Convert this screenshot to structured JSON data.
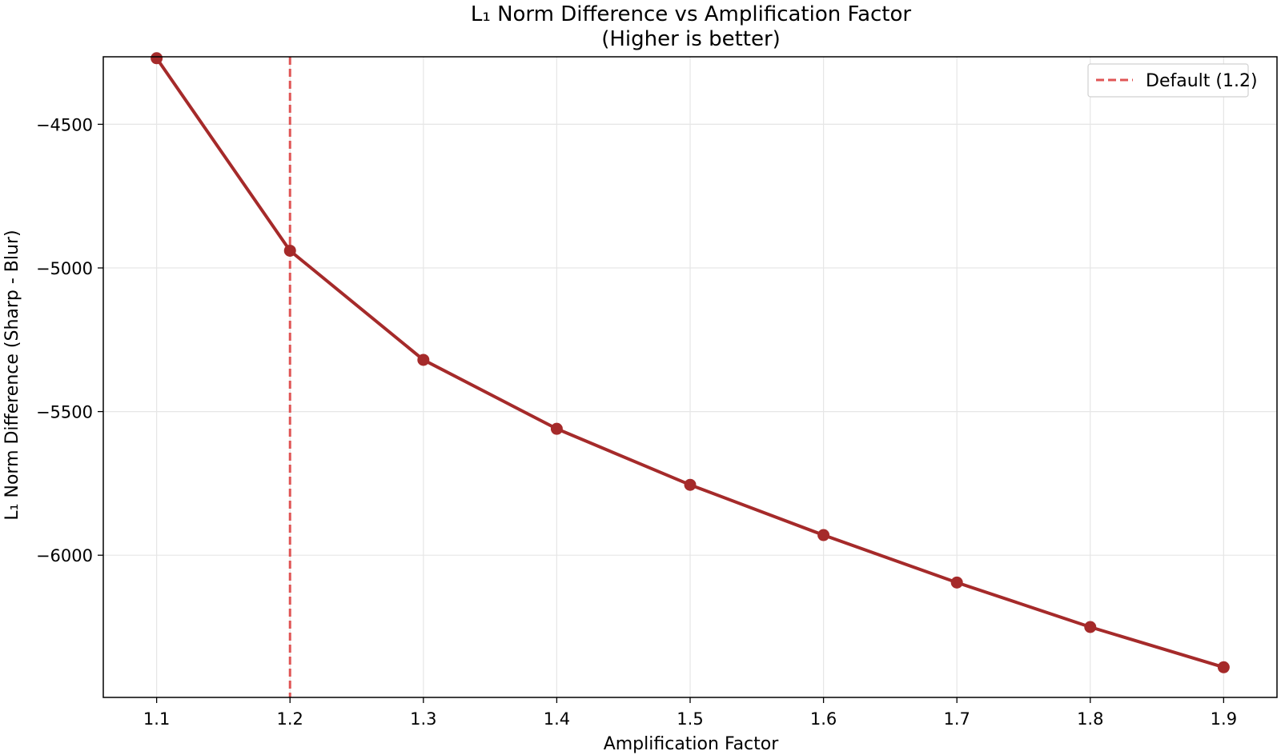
{
  "chart_data": {
    "type": "line",
    "title": "L₁ Norm Difference vs Amplification Factor",
    "subtitle": "(Higher is better)",
    "xlabel": "Amplification Factor",
    "ylabel": "L₁ Norm Difference (Sharp - Blur)",
    "xlim": [
      1.06,
      1.94
    ],
    "ylim": [
      -6495,
      -4265
    ],
    "grid": true,
    "xticks": [
      1.1,
      1.2,
      1.3,
      1.4,
      1.5,
      1.6,
      1.7,
      1.8,
      1.9
    ],
    "xtick_labels": [
      "1.1",
      "1.2",
      "1.3",
      "1.4",
      "1.5",
      "1.6",
      "1.7",
      "1.8",
      "1.9"
    ],
    "yticks": [
      -4500,
      -5000,
      -5500,
      -6000
    ],
    "ytick_labels": [
      "−4500",
      "−5000",
      "−5500",
      "−6000"
    ],
    "series": [
      {
        "color": "#a52a2a",
        "x": [
          1.1,
          1.2,
          1.3,
          1.4,
          1.5,
          1.6,
          1.7,
          1.8,
          1.9
        ],
        "y": [
          -4270,
          -4940,
          -5320,
          -5560,
          -5755,
          -5930,
          -6095,
          -6250,
          -6390
        ]
      }
    ],
    "reference_lines": [
      {
        "orientation": "vertical",
        "x": 1.2,
        "style": "dashed",
        "color": "#e05555",
        "label": "Default (1.2)"
      }
    ],
    "legend": {
      "position": "top-right",
      "entries": [
        "Default (1.2)"
      ]
    }
  }
}
